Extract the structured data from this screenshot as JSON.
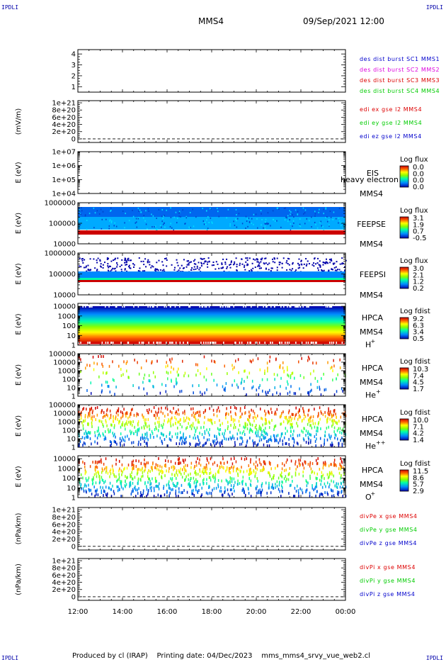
{
  "corner_label": "IPDLI",
  "header": {
    "left": "MMS4",
    "right": "09/Sep/2021 12:00"
  },
  "footer": {
    "produced_by": "Produced by cl (IRAP)",
    "printing_date": "Printing date: 04/Dec/2023",
    "file": "mms_mms4_srvy_vue_web2.cl"
  },
  "chart_data": {
    "type": "heatmap",
    "x_ticks": [
      "12:00",
      "14:00",
      "16:00",
      "18:00",
      "20:00",
      "22:00",
      "00:00"
    ],
    "panels": [
      {
        "kind": "line",
        "ylabel": "",
        "ticks": [
          "4",
          "3",
          "2",
          "1"
        ],
        "ylim": [
          0.5,
          4.4
        ],
        "tick_values": [
          4,
          3,
          2,
          1
        ],
        "legend": [
          {
            "text": "des dist burst SC1 MMS1",
            "color": "#0000cc"
          },
          {
            "text": "des dist burst SC2 MMS2",
            "color": "#dd00dd"
          },
          {
            "text": "des dist burst SC3 MMS3",
            "color": "#dd0000"
          },
          {
            "text": "des dist burst SC4 MMS4",
            "color": "#00cc00"
          }
        ]
      },
      {
        "kind": "line",
        "ylabel": "(mV/m)",
        "ticks": [
          "1e+21",
          "8e+20",
          "6e+20",
          "4e+20",
          "2e+20",
          "0"
        ],
        "tick_values": [
          1e+21,
          8e+20,
          6e+20,
          4e+20,
          2e+20,
          0
        ],
        "ylim": [
          -1e+20,
          1.06e+21
        ],
        "dashed_zero": true,
        "legend": [
          {
            "text": "edi ex gse l2 MMS4",
            "color": "#dd0000"
          },
          {
            "text": "edi ey gse l2 MMS4",
            "color": "#00cc00"
          },
          {
            "text": "edi ez gse l2 MMS4",
            "color": "#0000cc"
          }
        ]
      },
      {
        "kind": "spectro",
        "ylabel": "E (eV)",
        "ticks": [
          "1e+07",
          "1e+06",
          "1e+05",
          "1e+04"
        ],
        "log_range": [
          4,
          7
        ],
        "instrument": "EIS",
        "spacecraft": "MMS4",
        "overlay": "heavy electron to",
        "cbar_title": "Log flux",
        "cbar_values": [
          "0.0",
          "0.0",
          "0.0",
          "0.0"
        ],
        "scale": "log"
      },
      {
        "kind": "spectro",
        "ylabel": "E (eV)",
        "ticks": [
          "1000000",
          "100000",
          "10000"
        ],
        "log_range": [
          4,
          6
        ],
        "instrument": "FEEPSE",
        "spacecraft": "MMS4",
        "cbar_title": "Log flux",
        "cbar_values": [
          "3.1",
          "1.9",
          "0.7",
          "-0.5"
        ],
        "scale": "log"
      },
      {
        "kind": "spectro",
        "ylabel": "E (eV)",
        "ticks": [
          "1000000",
          "100000",
          "10000"
        ],
        "log_range": [
          4,
          6
        ],
        "instrument": "FEEPSI",
        "spacecraft": "MMS4",
        "cbar_title": "Log flux",
        "cbar_values": [
          "3.0",
          "2.1",
          "1.2",
          "0.2"
        ],
        "scale": "log"
      },
      {
        "kind": "spectro",
        "ylabel": "E (eV)",
        "ticks": [
          "10000",
          "1000",
          "100",
          "10",
          "1"
        ],
        "log_range": [
          0,
          4.3
        ],
        "instrument": "HPCA",
        "spacecraft": "MMS4",
        "species": "H",
        "charge": "+",
        "cbar_title": "Log fdist",
        "cbar_values": [
          "9.2",
          "6.3",
          "3.4",
          "0.5"
        ],
        "scale": "log"
      },
      {
        "kind": "spectro",
        "ylabel": "E (eV)",
        "ticks": [
          "100000",
          "10000",
          "1000",
          "100",
          "10",
          "1"
        ],
        "log_range": [
          0,
          5
        ],
        "instrument": "HPCA",
        "spacecraft": "MMS4",
        "species": "He",
        "charge": "+",
        "cbar_title": "Log fdist",
        "cbar_values": [
          "10.3",
          "7.4",
          "4.5",
          "1.7"
        ],
        "scale": "log"
      },
      {
        "kind": "spectro",
        "ylabel": "E (eV)",
        "ticks": [
          "100000",
          "10000",
          "1000",
          "100",
          "10",
          "1"
        ],
        "log_range": [
          0,
          5
        ],
        "instrument": "HPCA",
        "spacecraft": "MMS4",
        "species": "He",
        "charge": "++",
        "cbar_title": "Log fdist",
        "cbar_values": [
          "10.0",
          "7.1",
          "4.2",
          "1.4"
        ],
        "scale": "log"
      },
      {
        "kind": "spectro",
        "ylabel": "E (eV)",
        "ticks": [
          "10000",
          "1000",
          "100",
          "10",
          "1"
        ],
        "log_range": [
          0,
          4.3
        ],
        "instrument": "HPCA",
        "spacecraft": "MMS4",
        "species": "O",
        "charge": "+",
        "cbar_title": "Log fdist",
        "cbar_values": [
          "11.5",
          "8.6",
          "5.7",
          "2.9"
        ],
        "scale": "log"
      },
      {
        "kind": "line",
        "ylabel": "(nPa/km)",
        "ticks": [
          "1e+21",
          "8e+20",
          "6e+20",
          "4e+20",
          "2e+20",
          "0"
        ],
        "tick_values": [
          1e+21,
          8e+20,
          6e+20,
          4e+20,
          2e+20,
          0
        ],
        "ylim": [
          -1e+20,
          1.06e+21
        ],
        "dashed_zero": true,
        "legend": [
          {
            "text": "divPe x gse MMS4",
            "color": "#dd0000"
          },
          {
            "text": "divPe y gse MMS4",
            "color": "#00cc00"
          },
          {
            "text": "divPe z gse MMS4",
            "color": "#0000cc"
          }
        ]
      },
      {
        "kind": "line",
        "ylabel": "(nPa/km)",
        "ticks": [
          "1e+21",
          "8e+20",
          "6e+20",
          "4e+20",
          "2e+20",
          "0"
        ],
        "tick_values": [
          1e+21,
          8e+20,
          6e+20,
          4e+20,
          2e+20,
          0
        ],
        "ylim": [
          -1e+20,
          1.06e+21
        ],
        "dashed_zero": true,
        "legend": [
          {
            "text": "divPi x gse MMS4",
            "color": "#dd0000"
          },
          {
            "text": "divPi y gse MMS4",
            "color": "#00cc00"
          },
          {
            "text": "divPi z gse MMS4",
            "color": "#0000cc"
          }
        ]
      }
    ]
  }
}
